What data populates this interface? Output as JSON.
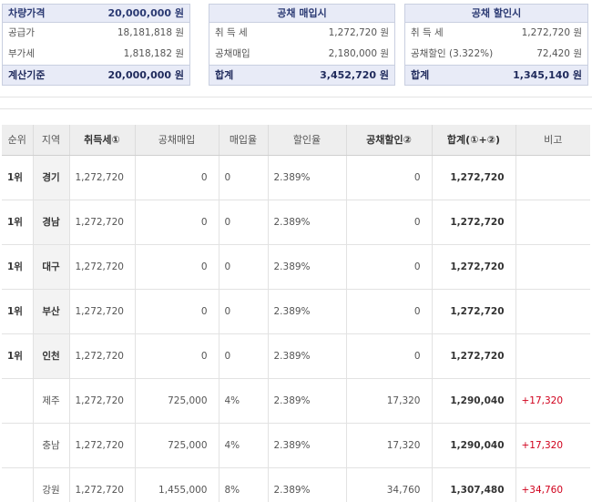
{
  "summary": {
    "vehicle": {
      "title": "차량가격",
      "title_value": "20,000,000 원",
      "rows": [
        {
          "label": "공급가",
          "value": "18,181,818 원"
        },
        {
          "label": "부가세",
          "value": "1,818,182 원"
        }
      ],
      "foot_label": "계산기준",
      "foot_value": "20,000,000 원"
    },
    "bond_purchase": {
      "title": "공채 매입시",
      "rows": [
        {
          "label": "취 득 세",
          "value": "1,272,720 원"
        },
        {
          "label": "공채매입",
          "value": "2,180,000 원"
        }
      ],
      "foot_label": "합계",
      "foot_value": "3,452,720 원"
    },
    "bond_discount": {
      "title": "공채 할인시",
      "rows": [
        {
          "label": "취 득 세",
          "value": "1,272,720 원"
        },
        {
          "label": "공채할인 (3.322%)",
          "value": "72,420 원"
        }
      ],
      "foot_label": "합계",
      "foot_value": "1,345,140 원"
    }
  },
  "table": {
    "headers": [
      "순위",
      "지역",
      "취득세①",
      "공채매입",
      "매입율",
      "할인율",
      "공채할인②",
      "합계(①+②)",
      "비고"
    ],
    "rows": [
      {
        "rank": "1위",
        "region": "경기",
        "tax": "1,272,720",
        "bond": "0",
        "buy_rate": "0",
        "disc_rate": "2.389%",
        "disc": "0",
        "total": "1,272,720",
        "note": ""
      },
      {
        "rank": "1위",
        "region": "경남",
        "tax": "1,272,720",
        "bond": "0",
        "buy_rate": "0",
        "disc_rate": "2.389%",
        "disc": "0",
        "total": "1,272,720",
        "note": ""
      },
      {
        "rank": "1위",
        "region": "대구",
        "tax": "1,272,720",
        "bond": "0",
        "buy_rate": "0",
        "disc_rate": "2.389%",
        "disc": "0",
        "total": "1,272,720",
        "note": ""
      },
      {
        "rank": "1위",
        "region": "부산",
        "tax": "1,272,720",
        "bond": "0",
        "buy_rate": "0",
        "disc_rate": "2.389%",
        "disc": "0",
        "total": "1,272,720",
        "note": ""
      },
      {
        "rank": "1위",
        "region": "인천",
        "tax": "1,272,720",
        "bond": "0",
        "buy_rate": "0",
        "disc_rate": "2.389%",
        "disc": "0",
        "total": "1,272,720",
        "note": ""
      },
      {
        "rank": "",
        "region": "제주",
        "tax": "1,272,720",
        "bond": "725,000",
        "buy_rate": "4%",
        "disc_rate": "2.389%",
        "disc": "17,320",
        "total": "1,290,040",
        "note": "+17,320"
      },
      {
        "rank": "",
        "region": "충남",
        "tax": "1,272,720",
        "bond": "725,000",
        "buy_rate": "4%",
        "disc_rate": "2.389%",
        "disc": "17,320",
        "total": "1,290,040",
        "note": "+17,320"
      },
      {
        "rank": "",
        "region": "강원",
        "tax": "1,272,720",
        "bond": "1,455,000",
        "buy_rate": "8%",
        "disc_rate": "2.389%",
        "disc": "34,760",
        "total": "1,307,480",
        "note": "+34,760"
      }
    ]
  }
}
